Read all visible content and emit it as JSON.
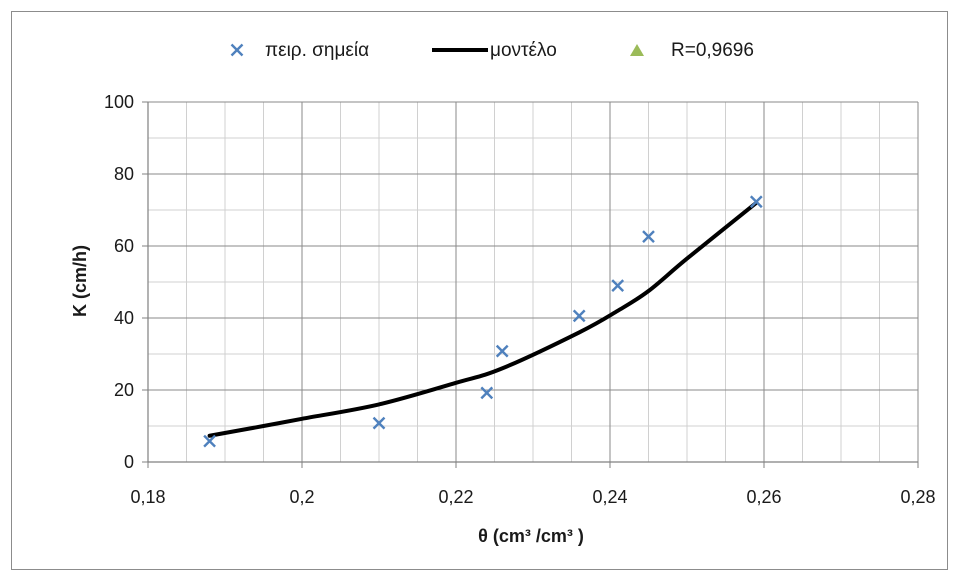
{
  "chart_data": {
    "type": "scatter",
    "xlabel": "θ (cm³ /cm³ )",
    "ylabel": "K (cm/h)",
    "xlim": [
      0.18,
      0.28
    ],
    "ylim": [
      0,
      100
    ],
    "x_ticks": [
      0.18,
      0.2,
      0.22,
      0.24,
      0.26,
      0.28
    ],
    "x_tick_labels": [
      "0,18",
      "0,2",
      "0,22",
      "0,24",
      "0,26",
      "0,28"
    ],
    "y_ticks": [
      0,
      20,
      40,
      60,
      80,
      100
    ],
    "y_tick_labels": [
      "0",
      "20",
      "40",
      "60",
      "80",
      "100"
    ],
    "grid": true,
    "legend_position": "top",
    "series": [
      {
        "name": "πειρ. σημεία",
        "kind": "marker-x",
        "color": "#4f81bd",
        "x": [
          0.188,
          0.21,
          0.224,
          0.226,
          0.236,
          0.241,
          0.245,
          0.259
        ],
        "y": [
          5.8,
          10.8,
          19.2,
          30.8,
          40.6,
          49.0,
          62.6,
          72.3
        ]
      },
      {
        "name": "μοντέλο",
        "kind": "line",
        "color": "#000000",
        "x": [
          0.188,
          0.195,
          0.2,
          0.21,
          0.22,
          0.226,
          0.236,
          0.241,
          0.245,
          0.25,
          0.259
        ],
        "y": [
          7.3,
          10.0,
          12.0,
          16.0,
          22.0,
          26.0,
          36.0,
          42.0,
          47.5,
          56.5,
          72.0
        ]
      },
      {
        "name": "R=0,9696",
        "kind": "marker-triangle",
        "color": "#9bbb59",
        "x": [],
        "y": []
      }
    ]
  }
}
